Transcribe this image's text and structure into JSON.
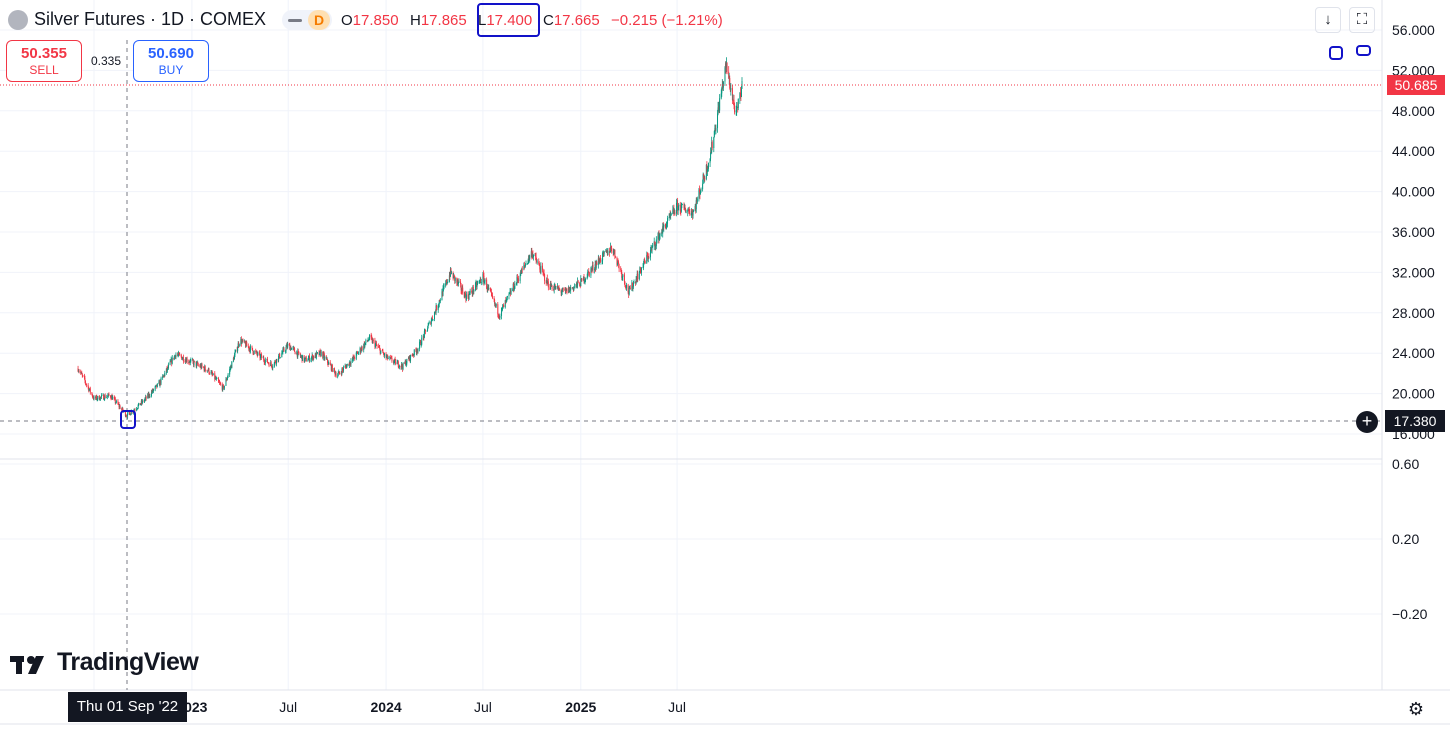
{
  "header": {
    "symbol_title": "Silver Futures · 1D · COMEX",
    "interval_badge": "D",
    "ohlc": {
      "o_label": "O",
      "o_value": "17.850",
      "h_label": "H",
      "h_value": "17.865",
      "l_label": "L",
      "l_value": "17.400",
      "c_label": "C",
      "c_value": "17.665",
      "change": "−0.215 (−1.21%)"
    },
    "toolbar": {
      "download_icon": "arrow-down-icon",
      "fullscreen_icon": "fullscreen-icon"
    }
  },
  "trade": {
    "sell_price": "50.355",
    "sell_label": "SELL",
    "spread": "0.335",
    "buy_price": "50.690",
    "buy_label": "BUY"
  },
  "price_axis": {
    "main_ticks": [
      "56.000",
      "52.000",
      "48.000",
      "44.000",
      "40.000",
      "36.000",
      "32.000",
      "28.000",
      "24.000",
      "20.000",
      "16.000"
    ],
    "indicator_ticks": [
      "0.60",
      "0.20",
      "−0.20"
    ],
    "last_price": "50.685",
    "crosshair_price": "17.380"
  },
  "time_axis": {
    "labels": [
      {
        "text": "Jul",
        "bold": false
      },
      {
        "text": "2023",
        "bold": true
      },
      {
        "text": "Jul",
        "bold": false
      },
      {
        "text": "2024",
        "bold": true
      },
      {
        "text": "Jul",
        "bold": false
      },
      {
        "text": "2025",
        "bold": true
      },
      {
        "text": "Jul",
        "bold": false
      }
    ],
    "crosshair_date": "Thu 01 Sep '22"
  },
  "branding": {
    "logo_text": "TradingView"
  },
  "colors": {
    "up": "#089981",
    "down": "#f23645",
    "annotation": "#1212c8",
    "last_price_line": "#f23645"
  },
  "chart_data": {
    "type": "candlestick",
    "x_range": [
      "2022-06",
      "2025-10"
    ],
    "y_range": [
      16,
      56
    ],
    "trend_points": [
      [
        "2022-06-01",
        22.5
      ],
      [
        "2022-07-01",
        19.5
      ],
      [
        "2022-08-01",
        19.8
      ],
      [
        "2022-09-01",
        17.8
      ],
      [
        "2022-10-01",
        19.2
      ],
      [
        "2022-11-01",
        21.0
      ],
      [
        "2022-12-01",
        23.9
      ],
      [
        "2023-02-01",
        22.3
      ],
      [
        "2023-03-01",
        20.5
      ],
      [
        "2023-04-01",
        25.3
      ],
      [
        "2023-05-01",
        24.0
      ],
      [
        "2023-06-01",
        22.8
      ],
      [
        "2023-07-01",
        24.8
      ],
      [
        "2023-08-01",
        23.3
      ],
      [
        "2023-09-01",
        24.0
      ],
      [
        "2023-10-01",
        21.8
      ],
      [
        "2023-11-01",
        23.5
      ],
      [
        "2023-12-01",
        25.5
      ],
      [
        "2024-01-01",
        23.6
      ],
      [
        "2024-02-01",
        22.7
      ],
      [
        "2024-03-01",
        24.5
      ],
      [
        "2024-04-01",
        28.0
      ],
      [
        "2024-05-01",
        32.0
      ],
      [
        "2024-06-01",
        29.5
      ],
      [
        "2024-07-01",
        31.5
      ],
      [
        "2024-08-01",
        27.8
      ],
      [
        "2024-09-01",
        31.0
      ],
      [
        "2024-10-01",
        34.0
      ],
      [
        "2024-11-01",
        30.8
      ],
      [
        "2024-12-01",
        30.0
      ],
      [
        "2025-01-01",
        31.0
      ],
      [
        "2025-02-01",
        33.0
      ],
      [
        "2025-03-01",
        34.5
      ],
      [
        "2025-04-01",
        30.0
      ],
      [
        "2025-05-01",
        33.0
      ],
      [
        "2025-06-01",
        36.0
      ],
      [
        "2025-07-01",
        38.5
      ],
      [
        "2025-08-01",
        38.0
      ],
      [
        "2025-09-01",
        43.5
      ],
      [
        "2025-10-01",
        52.5
      ],
      [
        "2025-10-20",
        47.5
      ],
      [
        "2025-11-01",
        50.7
      ]
    ],
    "last_price": 50.685,
    "crosshair": {
      "date": "2022-09-01",
      "price": 17.38
    }
  }
}
